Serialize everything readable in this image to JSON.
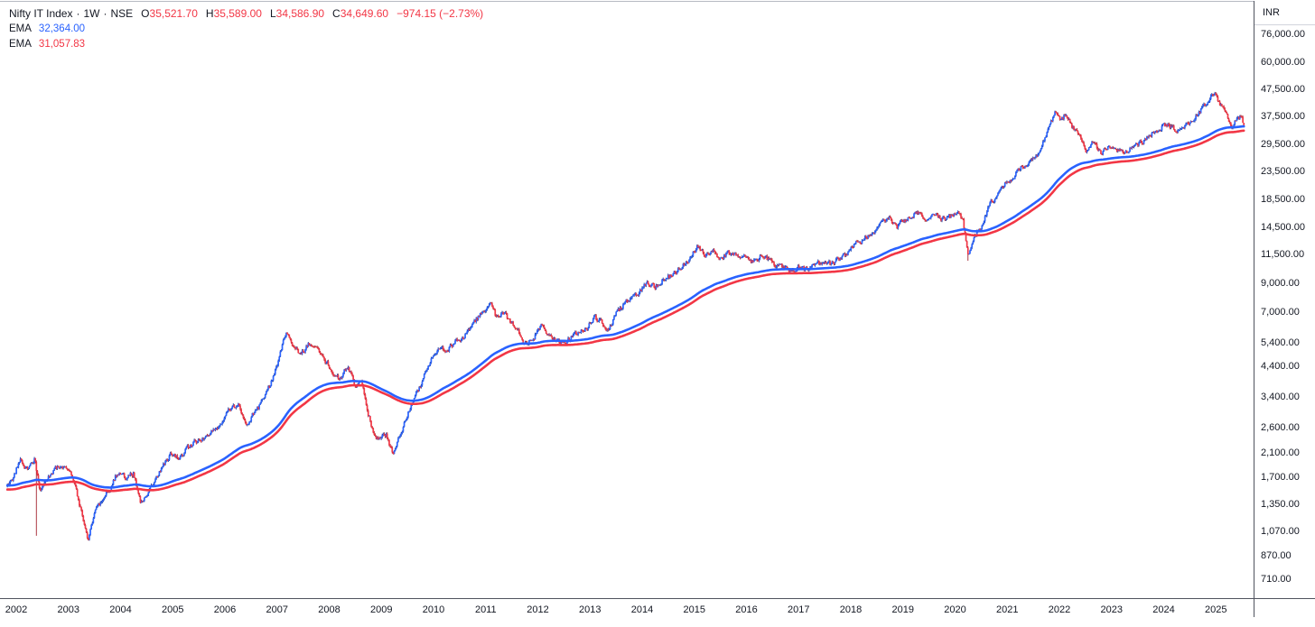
{
  "header": {
    "symbol": "Nifty IT Index",
    "separator": "·",
    "timeframe": "1W",
    "exchange": "NSE",
    "ohlc": {
      "o_label": "O",
      "open": "35,521.70",
      "h_label": "H",
      "high": "35,589.00",
      "l_label": "L",
      "low": "34,586.90",
      "c_label": "C",
      "close": "34,649.60",
      "change": "−974.15 (−2.73%)"
    },
    "indicators": [
      {
        "label": "EMA",
        "value": "32,364.00"
      },
      {
        "label": "EMA",
        "value": "31,057.83"
      }
    ]
  },
  "y_axis": {
    "currency": "INR",
    "ticks": [
      {
        "v": 76000,
        "label": "76,000.00"
      },
      {
        "v": 60000,
        "label": "60,000.00"
      },
      {
        "v": 47500,
        "label": "47,500.00"
      },
      {
        "v": 37500,
        "label": "37,500.00"
      },
      {
        "v": 29500,
        "label": "29,500.00"
      },
      {
        "v": 23500,
        "label": "23,500.00"
      },
      {
        "v": 18500,
        "label": "18,500.00"
      },
      {
        "v": 14500,
        "label": "14,500.00"
      },
      {
        "v": 11500,
        "label": "11,500.00"
      },
      {
        "v": 9000,
        "label": "9,000.00"
      },
      {
        "v": 7000,
        "label": "7,000.00"
      },
      {
        "v": 5400,
        "label": "5,400.00"
      },
      {
        "v": 4400,
        "label": "4,400.00"
      },
      {
        "v": 3400,
        "label": "3,400.00"
      },
      {
        "v": 2600,
        "label": "2,600.00"
      },
      {
        "v": 2100,
        "label": "2,100.00"
      },
      {
        "v": 1700,
        "label": "1,700.00"
      },
      {
        "v": 1350,
        "label": "1,350.00"
      },
      {
        "v": 1070,
        "label": "1,070.00"
      },
      {
        "v": 870,
        "label": "870.00"
      },
      {
        "v": 710,
        "label": "710.00"
      }
    ]
  },
  "x_axis": {
    "years": [
      "2002",
      "2003",
      "2004",
      "2005",
      "2006",
      "2007",
      "2008",
      "2009",
      "2010",
      "2011",
      "2012",
      "2013",
      "2014",
      "2015",
      "2016",
      "2017",
      "2018",
      "2019",
      "2020",
      "2021",
      "2022",
      "2023",
      "2024",
      "2025"
    ]
  },
  "colors": {
    "up_body": "#2962FF",
    "up_wick": "#1B3A99",
    "down_body": "#F23645",
    "down_wick": "#A3242F",
    "ema_fast": "#2962FF",
    "ema_slow": "#F23645",
    "text": "#131722",
    "value_red": "#F23645",
    "value_blue": "#2962FF",
    "axis_line": "#50535E"
  },
  "chart_data": {
    "type": "candlestick",
    "title": "Nifty IT Index · 1W · NSE",
    "scale": "log",
    "currency": "INR",
    "legend_position": "top-left",
    "grid": false,
    "x_range": [
      2001.83,
      2025.55
    ],
    "x_ticks": [
      2002,
      2003,
      2004,
      2005,
      2006,
      2007,
      2008,
      2009,
      2010,
      2011,
      2012,
      2013,
      2014,
      2015,
      2016,
      2017,
      2018,
      2019,
      2020,
      2021,
      2022,
      2023,
      2024,
      2025
    ],
    "y_ticks": [
      76000,
      60000,
      47500,
      37500,
      29500,
      23500,
      18500,
      14500,
      11500,
      9000,
      7000,
      5400,
      4400,
      3400,
      2600,
      2100,
      1700,
      1350,
      1070,
      870,
      710
    ],
    "last_bar": {
      "open": 35521.7,
      "high": 35589.0,
      "low": 34586.9,
      "close": 34649.6,
      "change": -974.15,
      "change_pct": -2.73
    },
    "emas": [
      {
        "color": "#2962FF",
        "last_value": 32364.0
      },
      {
        "color": "#F23645",
        "last_value": 31057.83
      }
    ],
    "events": [
      {
        "t": 2002.39,
        "low_wick": 1030
      },
      {
        "t": 2020.245,
        "low_wick": 10900
      }
    ],
    "price_path": [
      [
        2001.83,
        1580
      ],
      [
        2001.95,
        1700
      ],
      [
        2002.08,
        2020
      ],
      [
        2002.2,
        1820
      ],
      [
        2002.35,
        1980
      ],
      [
        2002.45,
        1500
      ],
      [
        2002.55,
        1680
      ],
      [
        2002.7,
        1800
      ],
      [
        2002.85,
        1870
      ],
      [
        2003.0,
        1820
      ],
      [
        2003.12,
        1600
      ],
      [
        2003.28,
        1180
      ],
      [
        2003.38,
        990
      ],
      [
        2003.5,
        1240
      ],
      [
        2003.65,
        1420
      ],
      [
        2003.8,
        1560
      ],
      [
        2003.95,
        1780
      ],
      [
        2004.1,
        1700
      ],
      [
        2004.25,
        1750
      ],
      [
        2004.38,
        1390
      ],
      [
        2004.5,
        1480
      ],
      [
        2004.65,
        1650
      ],
      [
        2004.8,
        1850
      ],
      [
        2004.95,
        2050
      ],
      [
        2005.1,
        2000
      ],
      [
        2005.25,
        2160
      ],
      [
        2005.4,
        2280
      ],
      [
        2005.55,
        2350
      ],
      [
        2005.7,
        2480
      ],
      [
        2005.85,
        2600
      ],
      [
        2006.0,
        2900
      ],
      [
        2006.12,
        3050
      ],
      [
        2006.25,
        3180
      ],
      [
        2006.42,
        2700
      ],
      [
        2006.55,
        2950
      ],
      [
        2006.7,
        3200
      ],
      [
        2006.85,
        3700
      ],
      [
        2007.0,
        4400
      ],
      [
        2007.1,
        5300
      ],
      [
        2007.18,
        5900
      ],
      [
        2007.3,
        5300
      ],
      [
        2007.45,
        4850
      ],
      [
        2007.6,
        5350
      ],
      [
        2007.75,
        5100
      ],
      [
        2007.9,
        4700
      ],
      [
        2008.05,
        4300
      ],
      [
        2008.2,
        3900
      ],
      [
        2008.35,
        4400
      ],
      [
        2008.5,
        3750
      ],
      [
        2008.62,
        3900
      ],
      [
        2008.75,
        2950
      ],
      [
        2008.85,
        2500
      ],
      [
        2008.95,
        2350
      ],
      [
        2009.1,
        2430
      ],
      [
        2009.22,
        2080
      ],
      [
        2009.35,
        2380
      ],
      [
        2009.5,
        2900
      ],
      [
        2009.65,
        3400
      ],
      [
        2009.8,
        3950
      ],
      [
        2009.95,
        4600
      ],
      [
        2010.1,
        5250
      ],
      [
        2010.25,
        5100
      ],
      [
        2010.4,
        5350
      ],
      [
        2010.55,
        5600
      ],
      [
        2010.7,
        6000
      ],
      [
        2010.85,
        6700
      ],
      [
        2011.0,
        7350
      ],
      [
        2011.08,
        7600
      ],
      [
        2011.2,
        6700
      ],
      [
        2011.32,
        7050
      ],
      [
        2011.45,
        6550
      ],
      [
        2011.6,
        6100
      ],
      [
        2011.75,
        5300
      ],
      [
        2011.9,
        5550
      ],
      [
        2012.05,
        6250
      ],
      [
        2012.2,
        5850
      ],
      [
        2012.35,
        5500
      ],
      [
        2012.5,
        5350
      ],
      [
        2012.65,
        5700
      ],
      [
        2012.8,
        5950
      ],
      [
        2012.95,
        6200
      ],
      [
        2013.1,
        6700
      ],
      [
        2013.25,
        6300
      ],
      [
        2013.35,
        6000
      ],
      [
        2013.5,
        6900
      ],
      [
        2013.65,
        7500
      ],
      [
        2013.8,
        7900
      ],
      [
        2013.95,
        8300
      ],
      [
        2014.1,
        9100
      ],
      [
        2014.25,
        8700
      ],
      [
        2014.4,
        9300
      ],
      [
        2014.55,
        9600
      ],
      [
        2014.7,
        10100
      ],
      [
        2014.85,
        10700
      ],
      [
        2015.0,
        11900
      ],
      [
        2015.07,
        12350
      ],
      [
        2015.2,
        11300
      ],
      [
        2015.35,
        11800
      ],
      [
        2015.5,
        11200
      ],
      [
        2015.65,
        11700
      ],
      [
        2015.8,
        11250
      ],
      [
        2015.95,
        11450
      ],
      [
        2016.1,
        10700
      ],
      [
        2016.25,
        11250
      ],
      [
        2016.4,
        11050
      ],
      [
        2016.55,
        10450
      ],
      [
        2016.7,
        10250
      ],
      [
        2016.85,
        9950
      ],
      [
        2017.0,
        10350
      ],
      [
        2017.15,
        10050
      ],
      [
        2017.3,
        10500
      ],
      [
        2017.45,
        10750
      ],
      [
        2017.6,
        10500
      ],
      [
        2017.75,
        10950
      ],
      [
        2017.9,
        11500
      ],
      [
        2018.05,
        12400
      ],
      [
        2018.2,
        12900
      ],
      [
        2018.35,
        13600
      ],
      [
        2018.5,
        14200
      ],
      [
        2018.65,
        15300
      ],
      [
        2018.75,
        15750
      ],
      [
        2018.88,
        14500
      ],
      [
        2019.0,
        15300
      ],
      [
        2019.15,
        16000
      ],
      [
        2019.3,
        16450
      ],
      [
        2019.45,
        15900
      ],
      [
        2019.6,
        16350
      ],
      [
        2019.75,
        15650
      ],
      [
        2019.9,
        15950
      ],
      [
        2020.05,
        16800
      ],
      [
        2020.15,
        15600
      ],
      [
        2020.25,
        11400
      ],
      [
        2020.35,
        13200
      ],
      [
        2020.5,
        14600
      ],
      [
        2020.65,
        17400
      ],
      [
        2020.8,
        19000
      ],
      [
        2020.95,
        21000
      ],
      [
        2021.1,
        22300
      ],
      [
        2021.25,
        24300
      ],
      [
        2021.38,
        24000
      ],
      [
        2021.5,
        26200
      ],
      [
        2021.65,
        28800
      ],
      [
        2021.8,
        33500
      ],
      [
        2021.92,
        39300
      ],
      [
        2022.02,
        37000
      ],
      [
        2022.12,
        38000
      ],
      [
        2022.25,
        34500
      ],
      [
        2022.4,
        31000
      ],
      [
        2022.52,
        27800
      ],
      [
        2022.65,
        30300
      ],
      [
        2022.8,
        27700
      ],
      [
        2022.95,
        28800
      ],
      [
        2023.1,
        28400
      ],
      [
        2023.25,
        27600
      ],
      [
        2023.4,
        28900
      ],
      [
        2023.55,
        29800
      ],
      [
        2023.7,
        31300
      ],
      [
        2023.85,
        33200
      ],
      [
        2024.0,
        35300
      ],
      [
        2024.15,
        34300
      ],
      [
        2024.3,
        33300
      ],
      [
        2024.45,
        34900
      ],
      [
        2024.6,
        37200
      ],
      [
        2024.75,
        40500
      ],
      [
        2024.88,
        43800
      ],
      [
        2024.97,
        45800
      ],
      [
        2025.07,
        42500
      ],
      [
        2025.17,
        39200
      ],
      [
        2025.27,
        34800
      ],
      [
        2025.33,
        34200
      ],
      [
        2025.42,
        38600
      ],
      [
        2025.48,
        37000
      ],
      [
        2025.53,
        35500
      ],
      [
        2025.55,
        34650
      ]
    ]
  }
}
